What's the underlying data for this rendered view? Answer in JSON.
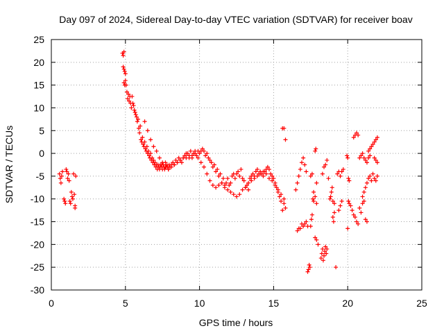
{
  "chart_data": {
    "type": "scatter",
    "title": "Day 097 of 2024, Sidereal Day-to-day VTEC variation (SDTVAR) for receiver boav",
    "xlabel": "GPS time / hours",
    "ylabel": "SDTVAR / TECUs",
    "xlim": [
      0,
      25
    ],
    "ylim": [
      -30,
      25
    ],
    "xticks": [
      0,
      5,
      10,
      15,
      20,
      25
    ],
    "yticks": [
      -30,
      -25,
      -20,
      -15,
      -10,
      -5,
      0,
      5,
      10,
      15,
      20,
      25
    ],
    "grid": true,
    "marker": "+",
    "color": "#ff0000",
    "series": [
      {
        "name": "boav",
        "x": [
          0.55,
          0.6,
          0.65,
          0.7,
          0.75,
          0.85,
          0.9,
          0.95,
          1.0,
          1.05,
          1.1,
          1.15,
          1.2,
          1.25,
          1.3,
          1.35,
          1.4,
          1.45,
          1.5,
          1.55,
          1.6,
          1.6,
          1.65,
          4.8,
          4.85,
          4.9,
          4.85,
          4.9,
          4.95,
          5.0,
          4.9,
          4.95,
          5.0,
          5.05,
          5.1,
          5.15,
          5.2,
          5.25,
          5.3,
          5.35,
          5.4,
          5.45,
          5.5,
          5.55,
          5.6,
          5.65,
          5.7,
          5.75,
          5.8,
          5.85,
          5.9,
          5.95,
          6.0,
          6.05,
          6.1,
          6.15,
          6.2,
          6.25,
          6.3,
          6.35,
          6.4,
          6.45,
          6.5,
          6.55,
          6.6,
          6.65,
          6.7,
          6.75,
          6.8,
          6.85,
          6.9,
          6.95,
          7.0,
          7.05,
          7.1,
          7.15,
          7.2,
          7.25,
          7.3,
          7.35,
          7.4,
          7.45,
          7.5,
          7.55,
          7.6,
          7.65,
          7.7,
          7.75,
          7.8,
          7.85,
          7.9,
          7.95,
          8.0,
          8.1,
          8.2,
          8.3,
          8.4,
          8.5,
          8.6,
          8.7,
          8.8,
          8.9,
          9.0,
          9.1,
          9.2,
          9.3,
          9.4,
          9.5,
          9.6,
          9.7,
          9.8,
          9.9,
          10.0,
          10.1,
          10.2,
          10.3,
          10.4,
          10.5,
          10.6,
          10.7,
          10.8,
          10.9,
          11.0,
          11.1,
          11.2,
          11.3,
          11.4,
          11.5,
          11.6,
          11.7,
          11.8,
          11.9,
          12.0,
          12.1,
          12.2,
          12.3,
          12.4,
          12.5,
          12.6,
          12.7,
          12.8,
          12.9,
          13.0,
          13.1,
          13.2,
          13.3,
          13.4,
          13.5,
          13.6,
          13.7,
          13.8,
          13.9,
          14.0,
          14.1,
          14.2,
          14.3,
          14.4,
          14.5,
          14.6,
          14.7,
          14.8,
          14.9,
          15.0,
          15.1,
          15.2,
          15.3,
          15.4,
          15.5,
          15.6,
          15.7,
          15.8,
          6.3,
          6.5,
          6.7,
          6.9,
          7.1,
          7.3,
          7.5,
          7.7,
          7.9,
          8.1,
          8.3,
          8.5,
          8.7,
          8.9,
          9.1,
          9.3,
          9.5,
          9.7,
          9.9,
          10.1,
          10.3,
          10.5,
          10.7,
          10.9,
          11.1,
          11.3,
          11.5,
          11.7,
          11.9,
          12.1,
          12.3,
          12.5,
          12.7,
          12.9,
          13.1,
          13.3,
          13.5,
          13.7,
          13.9,
          14.1,
          14.3,
          14.5,
          14.7,
          14.9,
          15.1,
          15.3,
          15.5,
          15.7,
          15.6,
          15.7,
          15.8,
          16.5,
          16.6,
          16.7,
          16.8,
          16.9,
          17.0,
          17.1,
          17.2,
          16.6,
          16.7,
          16.8,
          16.9,
          17.0,
          17.1,
          17.2,
          17.3,
          17.3,
          17.35,
          17.4,
          17.45,
          17.5,
          17.55,
          17.6,
          17.65,
          17.7,
          17.5,
          17.6,
          17.7,
          17.8,
          17.9,
          17.8,
          17.85,
          17.9,
          17.8,
          17.9,
          18.0,
          18.2,
          18.25,
          18.3,
          18.35,
          18.4,
          18.45,
          18.5,
          18.55,
          18.6,
          18.3,
          18.4,
          18.5,
          18.6,
          18.7,
          18.8,
          18.85,
          18.9,
          18.95,
          19.0,
          19.05,
          19.1,
          19.2,
          19.3,
          19.4,
          19.0,
          19.1,
          19.4,
          19.5,
          19.6,
          19.5,
          19.6,
          19.7,
          19.95,
          20.0,
          20.05,
          20.1,
          20.0,
          20.05,
          20.1,
          20.2,
          20.3,
          20.4,
          20.5,
          20.6,
          20.7,
          20.8,
          20.9,
          21.0,
          21.1,
          21.2,
          21.3,
          20.4,
          20.5,
          20.6,
          20.7,
          20.8,
          20.9,
          21.0,
          21.1,
          21.2,
          21.3,
          21.4,
          21.5,
          21.0,
          21.1,
          21.2,
          21.3,
          21.4,
          21.5,
          21.6,
          21.7,
          21.8,
          21.9,
          22.0,
          21.4,
          21.5,
          21.6,
          21.7,
          21.8,
          21.9,
          22.0,
          21.8,
          21.9,
          22.0
        ],
        "y": [
          -4.5,
          -5.5,
          -6.5,
          -5.0,
          -4.0,
          -10.0,
          -10.5,
          -11.0,
          -3.5,
          -4.0,
          -5.5,
          -4.5,
          -6.0,
          -10.5,
          -11.0,
          -8.5,
          -9.5,
          -10.0,
          -4.5,
          -9.0,
          -11.5,
          -12.0,
          -5.0,
          22.0,
          21.5,
          22.3,
          19.0,
          18.5,
          18.0,
          17.5,
          15.5,
          15.0,
          16.0,
          15.0,
          13.5,
          12.0,
          13.0,
          11.5,
          12.5,
          11.0,
          10.0,
          12.5,
          11.0,
          10.5,
          9.5,
          9.0,
          8.5,
          8.0,
          7.0,
          7.5,
          5.5,
          4.5,
          6.0,
          3.0,
          2.5,
          3.5,
          2.0,
          1.5,
          2.5,
          1.0,
          0.5,
          1.5,
          0.0,
          0.5,
          -0.5,
          -1.0,
          0.0,
          -1.5,
          -1.0,
          -2.0,
          -1.5,
          -2.5,
          -2.0,
          -3.0,
          -2.5,
          -3.5,
          -2.5,
          -3.0,
          -3.5,
          -2.5,
          -3.0,
          -2.5,
          -3.5,
          -2.5,
          -3.0,
          -3.5,
          -2.0,
          -3.0,
          -2.5,
          -3.0,
          -3.5,
          -2.5,
          -3.0,
          -2.5,
          -2.0,
          -2.5,
          -1.5,
          -2.0,
          -1.0,
          -1.5,
          -2.0,
          -1.0,
          -0.5,
          -1.0,
          0.0,
          -0.5,
          0.5,
          -1.0,
          0.0,
          0.5,
          -0.5,
          0.5,
          0.0,
          0.5,
          1.0,
          0.5,
          -0.5,
          0.0,
          -1.0,
          -1.5,
          -2.0,
          -3.0,
          -2.5,
          -4.0,
          -3.5,
          -5.0,
          -4.5,
          -6.5,
          -5.5,
          -7.0,
          -6.5,
          -5.5,
          -7.0,
          -6.5,
          -5.0,
          -4.5,
          -5.5,
          -4.5,
          -4.0,
          -5.0,
          -3.5,
          -5.5,
          -6.0,
          -7.5,
          -7.0,
          -8.0,
          -5.5,
          -5.0,
          -4.5,
          -5.0,
          -4.0,
          -3.5,
          -4.5,
          -4.0,
          -4.5,
          -5.0,
          -4.0,
          -3.5,
          -3.0,
          -3.5,
          -4.5,
          -5.0,
          -5.5,
          -6.5,
          -7.5,
          -8.5,
          -9.5,
          -10.5,
          -12.5,
          -11.0,
          -12.0,
          7.0,
          5.0,
          3.0,
          1.5,
          0.5,
          -1.0,
          -2.0,
          -3.0,
          -3.5,
          -3.0,
          -2.5,
          -2.0,
          -1.5,
          -1.0,
          0.0,
          -1.0,
          -0.5,
          0.0,
          -1.0,
          -2.0,
          -3.0,
          -4.5,
          -6.0,
          -7.0,
          -7.5,
          -7.0,
          -6.5,
          -7.5,
          -8.0,
          -8.5,
          -9.0,
          -9.5,
          -9.0,
          -8.0,
          -7.5,
          -6.5,
          -6.0,
          -5.5,
          -5.0,
          -4.5,
          -4.0,
          -4.5,
          -5.5,
          -6.0,
          -7.0,
          -8.0,
          -9.0,
          -10.0,
          5.5,
          5.5,
          3.0,
          -8.0,
          -6.5,
          -5.0,
          -3.5,
          -2.0,
          -1.0,
          -2.5,
          -4.0,
          -17.0,
          -16.5,
          -16.5,
          -15.5,
          -16.0,
          -15.5,
          -15.0,
          -16.0,
          -26.0,
          -25.5,
          -24.5,
          -25.0,
          -16.0,
          -14.5,
          -13.5,
          -10.0,
          -8.5,
          -5.0,
          -4.5,
          -10.5,
          -9.5,
          -11.0,
          0.5,
          1.0,
          -6.5,
          -18.5,
          -19.0,
          -20.0,
          -23.0,
          -22.0,
          -21.0,
          -23.5,
          -22.5,
          -21.5,
          -20.5,
          -22.0,
          -21.0,
          -4.5,
          -3.0,
          -2.5,
          -1.5,
          -5.5,
          -10.0,
          -9.5,
          -8.5,
          -7.5,
          -14.0,
          -15.0,
          -13.0,
          -25.0,
          -4.5,
          -4.0,
          -10.5,
          -11.0,
          -12.5,
          -11.5,
          -10.5,
          -5.0,
          -4.0,
          -3.5,
          -0.5,
          -1.0,
          -5.5,
          -6.0,
          -16.5,
          -10.5,
          -11.0,
          -11.5,
          -12.5,
          -13.5,
          -14.0,
          -15.0,
          -15.5,
          -12.0,
          -13.0,
          -11.0,
          -10.5,
          -14.5,
          -15.0,
          3.5,
          4.0,
          4.5,
          4.0,
          -1.0,
          -0.5,
          0.0,
          -1.0,
          -1.5,
          -2.0,
          -1.0,
          -0.5,
          -9.5,
          -8.5,
          -7.5,
          -6.5,
          -5.5,
          -5.0,
          -6.0,
          -4.5,
          -5.5,
          -6.0,
          -5.0,
          0.5,
          1.0,
          1.5,
          2.0,
          2.5,
          3.0,
          3.5,
          -1.0,
          -1.5,
          -2.0
        ]
      }
    ]
  }
}
